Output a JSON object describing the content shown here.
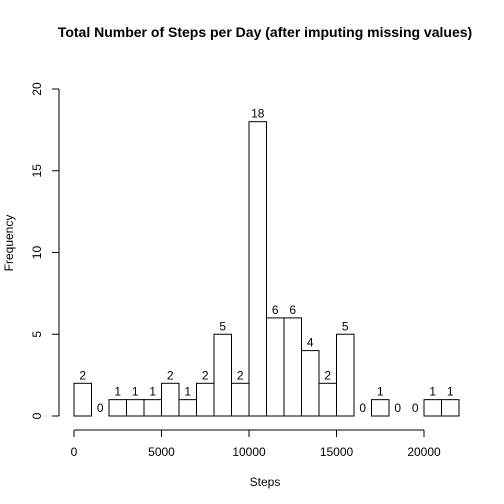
{
  "chart_data": {
    "type": "bar",
    "title": "Total Number of Steps per Day (after imputing missing values)",
    "xlabel": "Steps",
    "ylabel": "Frequency",
    "bin_width": 1000,
    "bin_starts": [
      0,
      1000,
      2000,
      3000,
      4000,
      5000,
      6000,
      7000,
      8000,
      9000,
      10000,
      11000,
      12000,
      13000,
      14000,
      15000,
      16000,
      17000,
      18000,
      19000,
      20000,
      21000
    ],
    "values": [
      2,
      0,
      1,
      1,
      1,
      2,
      1,
      2,
      5,
      2,
      18,
      6,
      6,
      4,
      2,
      5,
      0,
      1,
      0,
      0,
      1,
      1
    ],
    "xlim": [
      0,
      22000
    ],
    "ylim": [
      0,
      20
    ],
    "x_ticks": [
      0,
      5000,
      10000,
      15000,
      20000
    ],
    "y_ticks": [
      0,
      5,
      10,
      15,
      20
    ],
    "bar_fill": "#ffffff",
    "bar_stroke": "#000000",
    "grid": false,
    "legend": "none"
  }
}
